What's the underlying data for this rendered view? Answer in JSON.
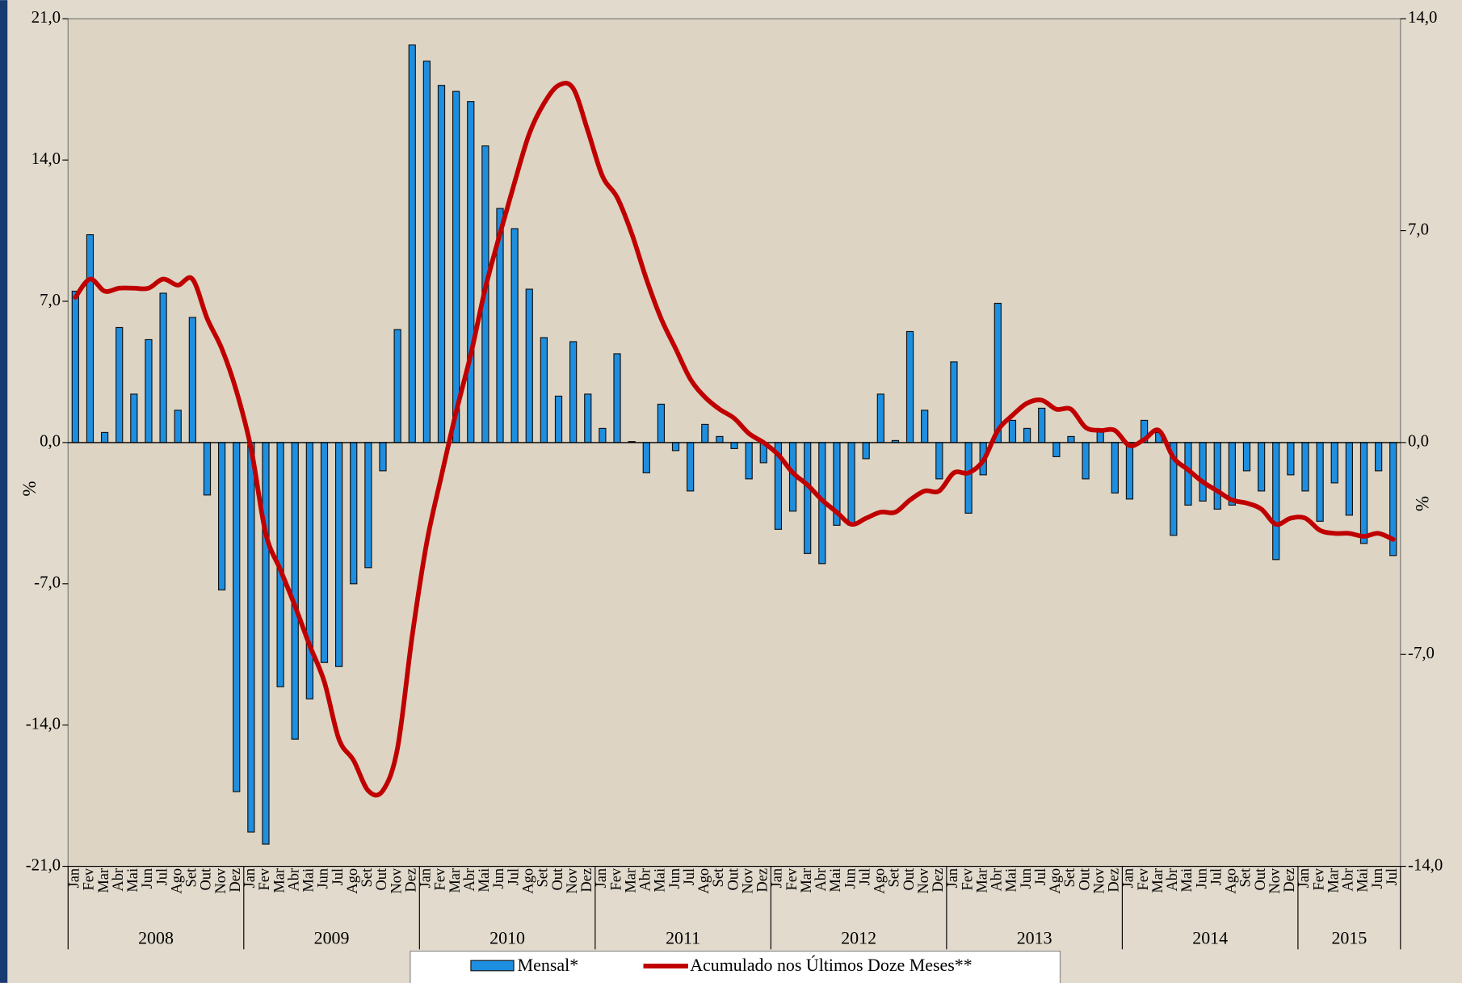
{
  "chart_data": {
    "type": "bar+line",
    "categories": [
      "Jan",
      "Fev",
      "Mar",
      "Abr",
      "Mai",
      "Jun",
      "Jul",
      "Ago",
      "Set",
      "Out",
      "Nov",
      "Dez",
      "Jan",
      "Fev",
      "Mar",
      "Abr",
      "Mai",
      "Jun",
      "Jul",
      "Ago",
      "Set",
      "Out",
      "Nov",
      "Dez",
      "Jan",
      "Fev",
      "Mar",
      "Abr",
      "Mai",
      "Jun",
      "Jul",
      "Ago",
      "Set",
      "Out",
      "Nov",
      "Dez",
      "Jan",
      "Fev",
      "Mar",
      "Abr",
      "Mai",
      "Jun",
      "Jul",
      "Ago",
      "Set",
      "Out",
      "Nov",
      "Dez",
      "Jan",
      "Fev",
      "Mar",
      "Abr",
      "Mai",
      "Jun",
      "Jul",
      "Ago",
      "Set",
      "Out",
      "Nov",
      "Dez",
      "Jan",
      "Fev",
      "Mar",
      "Abr",
      "Mai",
      "Jun",
      "Jul",
      "Ago",
      "Set",
      "Out",
      "Nov",
      "Dez",
      "Jan",
      "Fev",
      "Mar",
      "Abr",
      "Mai",
      "Jun",
      "Jul",
      "Ago",
      "Set",
      "Out",
      "Nov",
      "Dez",
      "Jan",
      "Fev",
      "Mar",
      "Abr",
      "Mai",
      "Jun",
      "Jul"
    ],
    "years": [
      "2008",
      "2009",
      "2010",
      "2011",
      "2012",
      "2013",
      "2014",
      "2015"
    ],
    "series": [
      {
        "name": "Mensal*",
        "type": "bar",
        "axis": "y",
        "color": "#1e8fe0",
        "values": [
          7.5,
          10.3,
          0.5,
          5.7,
          2.4,
          5.1,
          7.4,
          1.6,
          6.2,
          -2.6,
          -7.3,
          -17.3,
          -19.3,
          -19.9,
          -12.1,
          -14.7,
          -12.7,
          -10.9,
          -11.1,
          -7.0,
          -6.2,
          -1.4,
          5.6,
          19.7,
          18.9,
          17.7,
          17.4,
          16.9,
          14.7,
          11.6,
          10.6,
          7.6,
          5.2,
          2.3,
          5.0,
          2.4,
          0.7,
          4.4,
          0.05,
          -1.5,
          1.9,
          -0.4,
          -2.4,
          0.9,
          0.3,
          -0.3,
          -1.8,
          -1.0,
          -4.3,
          -3.4,
          -5.5,
          -6.0,
          -4.1,
          -4.1,
          -0.8,
          2.4,
          0.1,
          5.5,
          1.6,
          -1.8,
          4.0,
          -3.5,
          -1.6,
          6.9,
          1.1,
          0.7,
          1.7,
          -0.7,
          0.3,
          -1.8,
          0.6,
          -2.5,
          -2.8,
          1.1,
          0.5,
          -4.6,
          -3.1,
          -2.9,
          -3.3,
          -3.1,
          -1.4,
          -2.4,
          -5.8,
          -1.6,
          -2.4,
          -3.9,
          -2.0,
          -3.6,
          -5.0,
          -1.4,
          -5.6
        ]
      },
      {
        "name": "Acumulado nos Últimos Doze Meses**",
        "type": "line",
        "axis": "y2",
        "color": "#c00000",
        "values": [
          4.8,
          5.4,
          5.0,
          5.1,
          5.1,
          5.1,
          5.4,
          5.2,
          5.4,
          4.1,
          3.1,
          1.7,
          -0.2,
          -3.0,
          -4.2,
          -5.4,
          -6.7,
          -7.9,
          -9.8,
          -10.5,
          -11.5,
          -11.5,
          -10.1,
          -6.4,
          -3.3,
          -1.1,
          1.0,
          2.9,
          5.1,
          6.9,
          8.6,
          10.2,
          11.2,
          11.8,
          11.7,
          10.3,
          8.8,
          8.1,
          6.9,
          5.4,
          4.1,
          3.1,
          2.1,
          1.5,
          1.1,
          0.8,
          0.3,
          0.0,
          -0.4,
          -1.0,
          -1.4,
          -1.9,
          -2.3,
          -2.7,
          -2.5,
          -2.3,
          -2.3,
          -1.9,
          -1.6,
          -1.6,
          -1.0,
          -1.0,
          -0.6,
          0.4,
          0.9,
          1.3,
          1.4,
          1.1,
          1.1,
          0.5,
          0.4,
          0.4,
          -0.1,
          0.1,
          0.4,
          -0.5,
          -0.9,
          -1.3,
          -1.6,
          -1.9,
          -2.0,
          -2.2,
          -2.7,
          -2.5,
          -2.5,
          -2.9,
          -3.0,
          -3.0,
          -3.1,
          -3.0,
          -3.2
        ]
      }
    ],
    "ylabel": "%",
    "y2label": "%",
    "ylim": [
      -21,
      21
    ],
    "yticks": [
      {
        "value": -21,
        "label": "-21,0"
      },
      {
        "value": -14,
        "label": "-14,0"
      },
      {
        "value": -7,
        "label": "-7,0"
      },
      {
        "value": 0,
        "label": "0,0"
      },
      {
        "value": 7,
        "label": "7,0"
      },
      {
        "value": 14,
        "label": "14,0"
      },
      {
        "value": 21,
        "label": "21,0"
      }
    ],
    "y2lim": [
      -14,
      14
    ],
    "y2ticks": [
      {
        "value": -14,
        "label": "-14,0"
      },
      {
        "value": -7,
        "label": "-7,0"
      },
      {
        "value": 0,
        "label": "0,0"
      },
      {
        "value": 7,
        "label": "7,0"
      },
      {
        "value": 14,
        "label": "14,0"
      }
    ],
    "grid": false,
    "legend": "bottom"
  }
}
